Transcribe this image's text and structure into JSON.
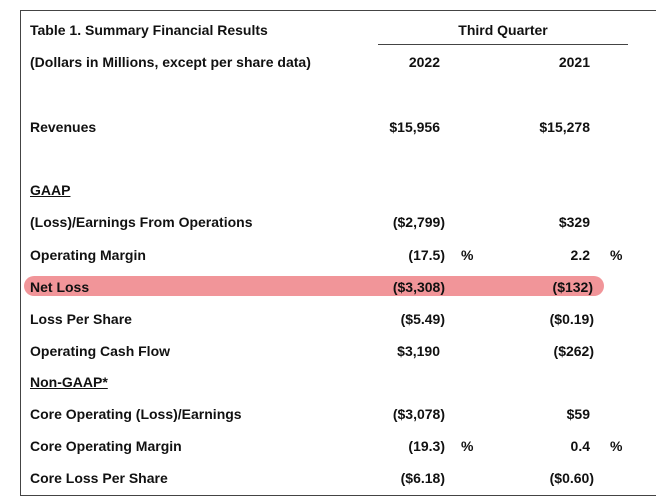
{
  "table": {
    "title": "Table 1. Summary Financial Results",
    "subtitle": "(Dollars in Millions, except per share data)",
    "period_header": "Third Quarter",
    "col_2022": "2022",
    "col_2021": "2021",
    "gaap_heading": "GAAP",
    "nongaap_heading": "Non-GAAP*",
    "rows": {
      "revenues": {
        "label": "Revenues",
        "v2022": "$15,956",
        "v2021": "$15,278"
      },
      "loss_earnings_ops": {
        "label": "(Loss)/Earnings From Operations",
        "v2022": "($2,799)",
        "v2021": "$329"
      },
      "operating_margin": {
        "label": "Operating Margin",
        "v2022": "(17.5)",
        "p2022": "%",
        "v2021": "2.2",
        "p2021": "%"
      },
      "net_loss": {
        "label": "Net Loss",
        "v2022": "($3,308)",
        "v2021": "($132)"
      },
      "loss_per_share": {
        "label": "Loss Per Share",
        "v2022": "($5.49)",
        "v2021": "($0.19)"
      },
      "operating_cash_flow": {
        "label": "Operating Cash Flow",
        "v2022": "$3,190",
        "v2021": "($262)"
      },
      "core_op_loss_earnings": {
        "label": "Core Operating (Loss)/Earnings",
        "v2022": "($3,078)",
        "v2021": "$59"
      },
      "core_op_margin": {
        "label": "Core Operating Margin",
        "v2022": "(19.3)",
        "p2022": "%",
        "v2021": "0.4",
        "p2021": "%"
      },
      "core_loss_per_share": {
        "label": "Core Loss Per Share",
        "v2022": "($6.18)",
        "v2021": "($0.60)"
      }
    },
    "highlight_color": "#f08f93"
  }
}
